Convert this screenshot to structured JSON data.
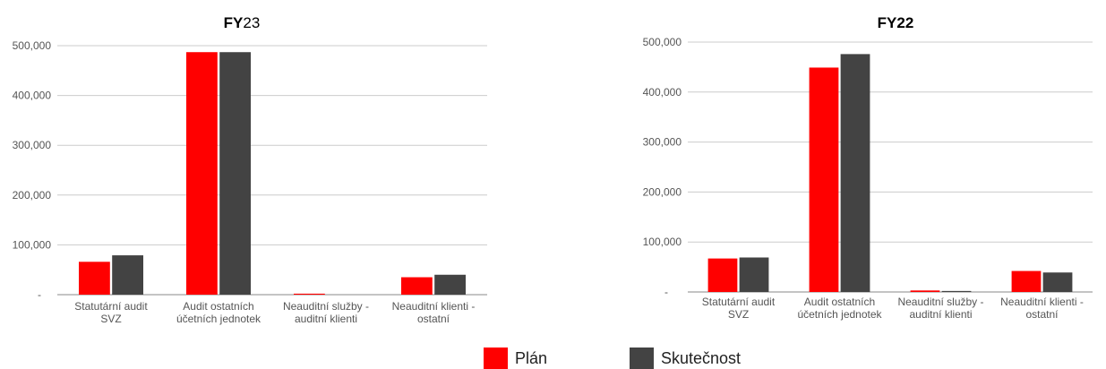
{
  "legend": {
    "items": [
      {
        "label": "Plán",
        "color": "#ff0000"
      },
      {
        "label": "Skutečnost",
        "color": "#434343"
      }
    ]
  },
  "chart_data": [
    {
      "type": "bar",
      "title_bold": "FY",
      "title_rest": "23",
      "categories": [
        [
          "Statutární audit",
          "SVZ"
        ],
        [
          "Audit ostatních",
          "účetních jednotek"
        ],
        [
          "Neauditní služby -",
          "auditní klienti"
        ],
        [
          "Neauditní klienti -",
          "ostatní"
        ]
      ],
      "series": [
        {
          "name": "Plán",
          "color": "#ff0000",
          "values": [
            66000,
            487000,
            2000,
            35000
          ]
        },
        {
          "name": "Skutečnost",
          "color": "#434343",
          "values": [
            79000,
            487000,
            0,
            40000
          ]
        }
      ],
      "ylim": [
        0,
        500000
      ],
      "yticks": [
        "-",
        "100,000",
        "200,000",
        "300,000",
        "400,000",
        "500,000"
      ],
      "grid": true,
      "legend": "bottom"
    },
    {
      "type": "bar",
      "title_bold": "FY22",
      "title_rest": "",
      "categories": [
        [
          "Statutární audit",
          "SVZ"
        ],
        [
          "Audit ostatních",
          "účetních jednotek"
        ],
        [
          "Neauditní služby -",
          "auditní klienti"
        ],
        [
          "Neauditní klienti -",
          "ostatní"
        ]
      ],
      "series": [
        {
          "name": "Plán",
          "color": "#ff0000",
          "values": [
            67000,
            449000,
            3000,
            42000
          ]
        },
        {
          "name": "Skutečnost",
          "color": "#434343",
          "values": [
            69000,
            476000,
            2000,
            39000
          ]
        }
      ],
      "ylim": [
        0,
        500000
      ],
      "yticks": [
        "-",
        "100,000",
        "200,000",
        "300,000",
        "400,000",
        "500,000"
      ],
      "grid": true,
      "legend": "bottom"
    }
  ]
}
